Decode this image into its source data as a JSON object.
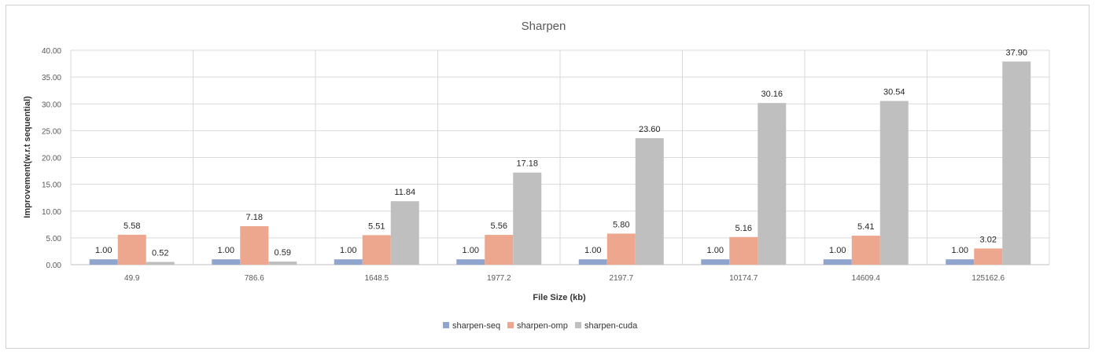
{
  "chart_data": {
    "type": "bar",
    "title": "Sharpen",
    "xlabel": "File Size (kb)",
    "ylabel": "Improvement(w.r.t sequential)",
    "ylim": [
      0,
      40
    ],
    "yticks": [
      "0.00",
      "5.00",
      "10.00",
      "15.00",
      "20.00",
      "25.00",
      "30.00",
      "35.00",
      "40.00"
    ],
    "grid": true,
    "legend_position": "bottom",
    "categories": [
      "49.9",
      "786.6",
      "1648.5",
      "1977.2",
      "2197.7",
      "10174.7",
      "14609.4",
      "125162.6"
    ],
    "series": [
      {
        "name": "sharpen-seq",
        "color": "#8fa5cd",
        "values": [
          1.0,
          1.0,
          1.0,
          1.0,
          1.0,
          1.0,
          1.0,
          1.0
        ],
        "labels": [
          "1.00",
          "1.00",
          "1.00",
          "1.00",
          "1.00",
          "1.00",
          "1.00",
          "1.00"
        ]
      },
      {
        "name": "sharpen-omp",
        "color": "#eda78e",
        "values": [
          5.58,
          7.18,
          5.51,
          5.56,
          5.8,
          5.16,
          5.41,
          3.02
        ],
        "labels": [
          "5.58",
          "7.18",
          "5.51",
          "5.56",
          "5.80",
          "5.16",
          "5.41",
          "3.02"
        ]
      },
      {
        "name": "sharpen-cuda",
        "color": "#bfbfbf",
        "values": [
          0.52,
          0.59,
          11.84,
          17.18,
          23.6,
          30.16,
          30.54,
          37.9
        ],
        "labels": [
          "0.52",
          "0.59",
          "11.84",
          "17.18",
          "23.60",
          "30.16",
          "30.54",
          "37.90"
        ]
      }
    ]
  }
}
